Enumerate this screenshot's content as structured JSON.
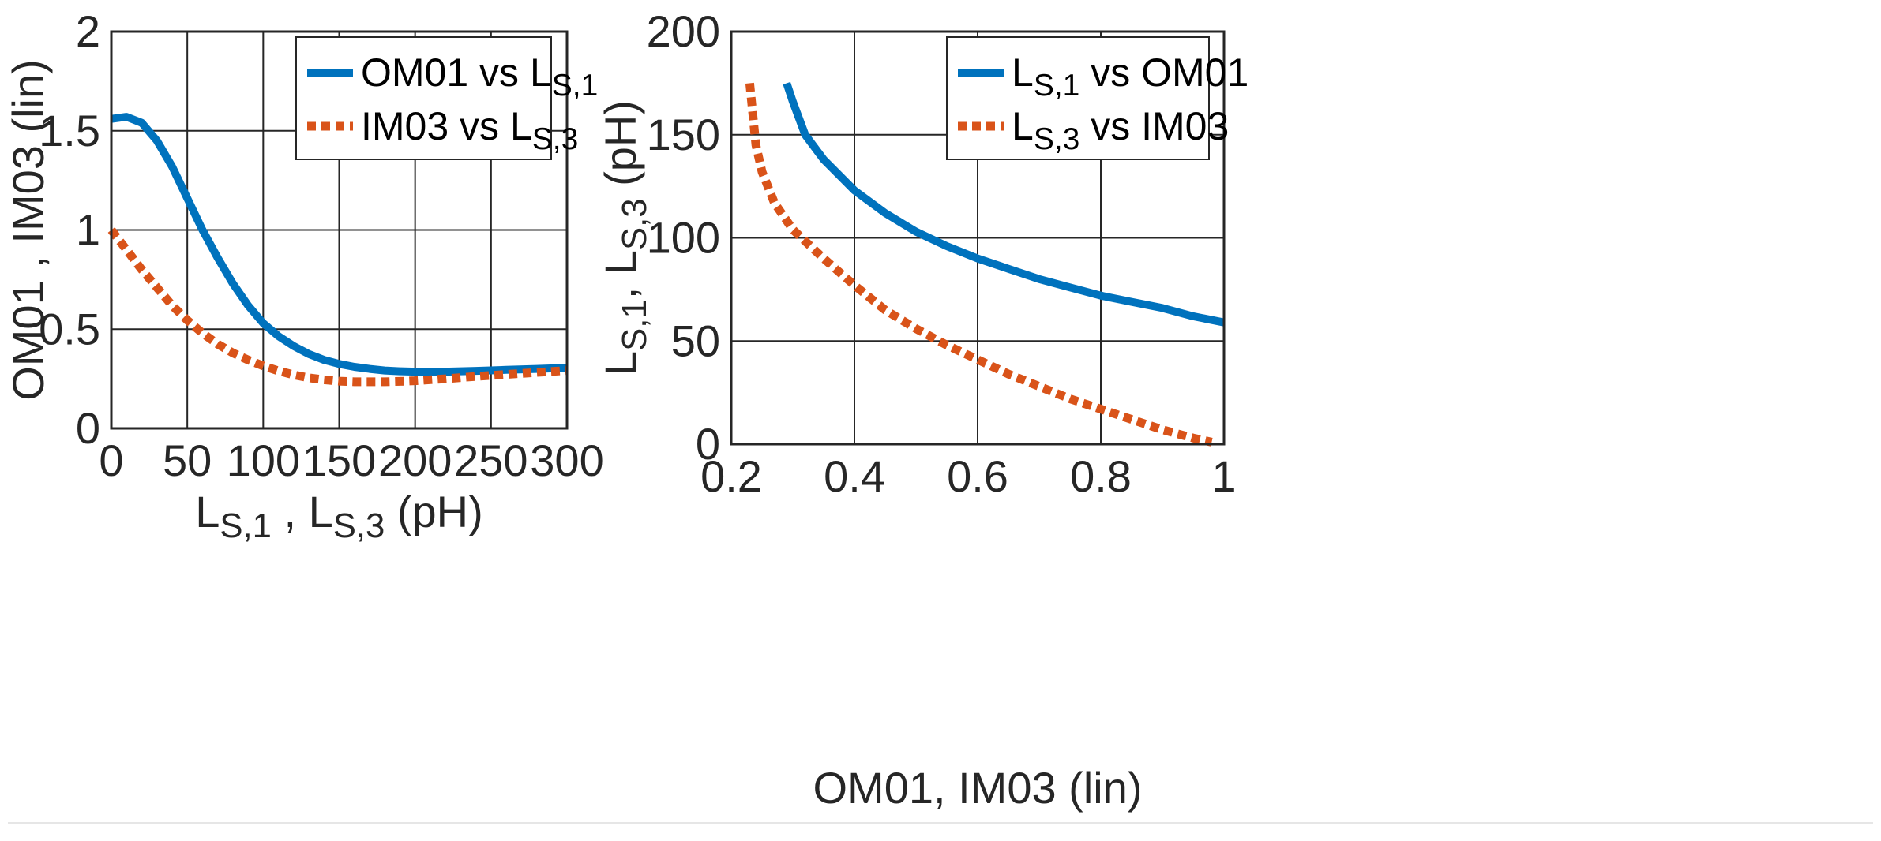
{
  "chart_data": [
    {
      "type": "line",
      "xlabel_parts": [
        "L",
        "S,1",
        " , L",
        "S,3",
        " (pH)"
      ],
      "ylabel": "OM01 , IM03 (lin)",
      "xlim": [
        0,
        300
      ],
      "ylim": [
        0,
        2
      ],
      "xticks": [
        0,
        50,
        100,
        150,
        200,
        250,
        300
      ],
      "yticks": [
        0,
        0.5,
        1,
        1.5,
        2
      ],
      "xtick_labels": [
        "0",
        "50",
        "100",
        "150",
        "200",
        "250",
        "300"
      ],
      "ytick_labels": [
        "0",
        "0.5",
        "1",
        "1.5",
        "2"
      ],
      "grid": true,
      "legend_position": "top-right",
      "series": [
        {
          "name": "OM01 vs L_S,1",
          "legend_parts": [
            "OM01 vs L",
            "S,1"
          ],
          "color": "#0072BD",
          "style": "solid",
          "x": [
            0,
            10,
            20,
            30,
            40,
            50,
            60,
            70,
            80,
            90,
            100,
            110,
            120,
            130,
            140,
            150,
            160,
            170,
            180,
            190,
            200,
            220,
            240,
            260,
            280,
            300
          ],
          "y": [
            1.56,
            1.57,
            1.54,
            1.45,
            1.32,
            1.16,
            1.0,
            0.86,
            0.73,
            0.62,
            0.53,
            0.465,
            0.415,
            0.375,
            0.345,
            0.325,
            0.31,
            0.3,
            0.292,
            0.288,
            0.286,
            0.286,
            0.29,
            0.295,
            0.3,
            0.305
          ]
        },
        {
          "name": "IM03 vs L_S,3",
          "legend_parts": [
            "IM03 vs L",
            "S,3"
          ],
          "color": "#D95319",
          "style": "dotted",
          "x": [
            0,
            10,
            20,
            30,
            40,
            50,
            60,
            70,
            80,
            90,
            100,
            110,
            120,
            130,
            140,
            150,
            160,
            170,
            180,
            190,
            200,
            220,
            240,
            260,
            280,
            300
          ],
          "y": [
            1.0,
            0.9,
            0.8,
            0.71,
            0.62,
            0.545,
            0.48,
            0.425,
            0.38,
            0.345,
            0.315,
            0.29,
            0.27,
            0.255,
            0.245,
            0.238,
            0.235,
            0.235,
            0.235,
            0.237,
            0.24,
            0.25,
            0.262,
            0.272,
            0.282,
            0.292
          ]
        }
      ]
    },
    {
      "type": "line",
      "xlabel": "OM01, IM03 (lin)",
      "ylabel_parts": [
        "L",
        "S,1",
        ", L",
        "S,3",
        " (pH)"
      ],
      "xlim": [
        0.2,
        1
      ],
      "ylim": [
        0,
        200
      ],
      "xticks": [
        0.2,
        0.4,
        0.6,
        0.8,
        1
      ],
      "yticks": [
        0,
        50,
        100,
        150,
        200
      ],
      "xtick_labels": [
        "0.2",
        "0.4",
        "0.6",
        "0.8",
        "1"
      ],
      "ytick_labels": [
        "0",
        "50",
        "100",
        "150",
        "200"
      ],
      "grid": true,
      "legend_position": "top-right",
      "series": [
        {
          "name": "L_S,1 vs OM01",
          "legend_parts": [
            "L",
            "S,1",
            " vs OM01"
          ],
          "color": "#0072BD",
          "style": "solid",
          "x": [
            0.29,
            0.3,
            0.32,
            0.35,
            0.4,
            0.45,
            0.5,
            0.55,
            0.6,
            0.65,
            0.7,
            0.75,
            0.8,
            0.85,
            0.9,
            0.95,
            1.0
          ],
          "y": [
            175,
            166,
            150,
            138,
            123,
            112,
            103,
            96,
            90,
            85,
            80,
            76,
            72,
            69,
            66,
            62,
            59
          ]
        },
        {
          "name": "L_S,3 vs IM03",
          "legend_parts": [
            "L",
            "S,3",
            " vs IM03"
          ],
          "color": "#D95319",
          "style": "dotted",
          "x": [
            0.23,
            0.235,
            0.24,
            0.25,
            0.27,
            0.3,
            0.35,
            0.4,
            0.45,
            0.5,
            0.55,
            0.6,
            0.65,
            0.7,
            0.75,
            0.8,
            0.85,
            0.9,
            0.95,
            0.98
          ],
          "y": [
            175,
            160,
            145,
            132,
            117,
            104,
            90,
            77,
            65,
            56,
            48,
            41,
            34,
            28,
            22,
            17,
            12,
            7,
            3,
            1
          ]
        }
      ]
    }
  ]
}
